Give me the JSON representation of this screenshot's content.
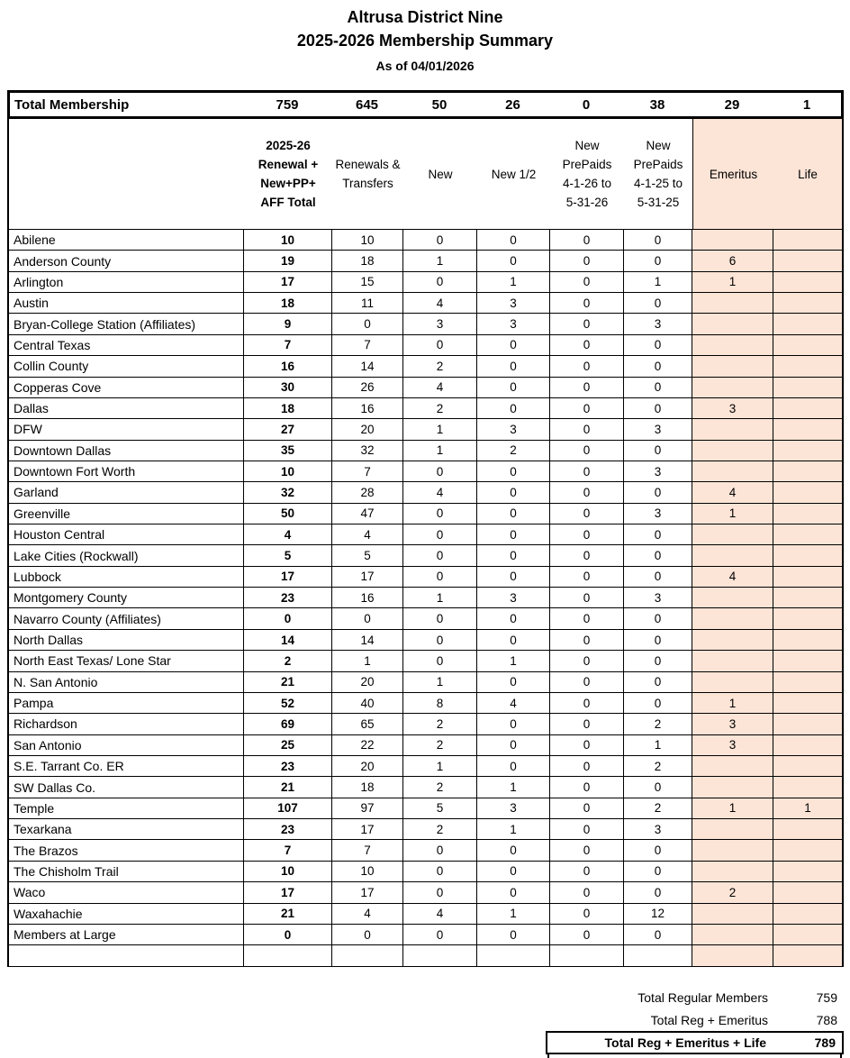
{
  "colors": {
    "highlight": "#fce4d6",
    "border": "#000000"
  },
  "title": {
    "line1": "Altrusa District Nine",
    "line2": "2025-2026 Membership Summary",
    "as_of": "As of 04/01/2026"
  },
  "table": {
    "total_row": {
      "label": "Total Membership",
      "values": [
        "759",
        "645",
        "50",
        "26",
        "0",
        "38",
        "29",
        "1"
      ]
    },
    "columns": [
      {
        "lines": [
          "2025-26",
          "Renewal +",
          "New+PP+",
          "AFF Total"
        ],
        "bold": true,
        "highlight": false
      },
      {
        "lines": [
          "Renewals &",
          "Transfers"
        ],
        "bold": false,
        "highlight": false
      },
      {
        "lines": [
          "New"
        ],
        "bold": false,
        "highlight": false
      },
      {
        "lines": [
          "New 1/2"
        ],
        "bold": false,
        "highlight": false
      },
      {
        "lines": [
          "New",
          "PrePaids",
          "4-1-26 to",
          "5-31-26"
        ],
        "bold": false,
        "highlight": false
      },
      {
        "lines": [
          "New",
          "PrePaids",
          "4-1-25 to",
          "5-31-25"
        ],
        "bold": false,
        "highlight": false
      },
      {
        "lines": [
          "Emeritus"
        ],
        "bold": false,
        "highlight": true
      },
      {
        "lines": [
          "Life"
        ],
        "bold": false,
        "highlight": true
      }
    ],
    "rows": [
      {
        "name": "Abilene",
        "values": [
          "10",
          "10",
          "0",
          "0",
          "0",
          "0",
          "",
          ""
        ]
      },
      {
        "name": "Anderson County",
        "values": [
          "19",
          "18",
          "1",
          "0",
          "0",
          "0",
          "6",
          ""
        ]
      },
      {
        "name": "Arlington",
        "values": [
          "17",
          "15",
          "0",
          "1",
          "0",
          "1",
          "1",
          ""
        ]
      },
      {
        "name": "Austin",
        "values": [
          "18",
          "11",
          "4",
          "3",
          "0",
          "0",
          "",
          ""
        ]
      },
      {
        "name": "Bryan-College Station (Affiliates)",
        "values": [
          "9",
          "0",
          "3",
          "3",
          "0",
          "3",
          "",
          ""
        ]
      },
      {
        "name": "Central Texas",
        "values": [
          "7",
          "7",
          "0",
          "0",
          "0",
          "0",
          "",
          ""
        ]
      },
      {
        "name": "Collin County",
        "values": [
          "16",
          "14",
          "2",
          "0",
          "0",
          "0",
          "",
          ""
        ]
      },
      {
        "name": "Copperas Cove",
        "values": [
          "30",
          "26",
          "4",
          "0",
          "0",
          "0",
          "",
          ""
        ]
      },
      {
        "name": "Dallas",
        "values": [
          "18",
          "16",
          "2",
          "0",
          "0",
          "0",
          "3",
          ""
        ]
      },
      {
        "name": "DFW",
        "values": [
          "27",
          "20",
          "1",
          "3",
          "0",
          "3",
          "",
          ""
        ]
      },
      {
        "name": "Downtown Dallas",
        "values": [
          "35",
          "32",
          "1",
          "2",
          "0",
          "0",
          "",
          ""
        ]
      },
      {
        "name": "Downtown Fort Worth",
        "values": [
          "10",
          "7",
          "0",
          "0",
          "0",
          "3",
          "",
          ""
        ]
      },
      {
        "name": "Garland",
        "values": [
          "32",
          "28",
          "4",
          "0",
          "0",
          "0",
          "4",
          ""
        ]
      },
      {
        "name": "Greenville",
        "values": [
          "50",
          "47",
          "0",
          "0",
          "0",
          "3",
          "1",
          ""
        ]
      },
      {
        "name": "Houston Central",
        "values": [
          "4",
          "4",
          "0",
          "0",
          "0",
          "0",
          "",
          ""
        ]
      },
      {
        "name": "Lake Cities (Rockwall)",
        "values": [
          "5",
          "5",
          "0",
          "0",
          "0",
          "0",
          "",
          ""
        ]
      },
      {
        "name": "Lubbock",
        "values": [
          "17",
          "17",
          "0",
          "0",
          "0",
          "0",
          "4",
          ""
        ]
      },
      {
        "name": "Montgomery County",
        "values": [
          "23",
          "16",
          "1",
          "3",
          "0",
          "3",
          "",
          ""
        ]
      },
      {
        "name": "Navarro County (Affiliates)",
        "values": [
          "0",
          "0",
          "0",
          "0",
          "0",
          "0",
          "",
          ""
        ]
      },
      {
        "name": "North Dallas",
        "values": [
          "14",
          "14",
          "0",
          "0",
          "0",
          "0",
          "",
          ""
        ]
      },
      {
        "name": "North East Texas/ Lone Star",
        "values": [
          "2",
          "1",
          "0",
          "1",
          "0",
          "0",
          "",
          ""
        ]
      },
      {
        "name": "N. San Antonio",
        "values": [
          "21",
          "20",
          "1",
          "0",
          "0",
          "0",
          "",
          ""
        ]
      },
      {
        "name": "Pampa",
        "values": [
          "52",
          "40",
          "8",
          "4",
          "0",
          "0",
          "1",
          ""
        ]
      },
      {
        "name": "Richardson",
        "values": [
          "69",
          "65",
          "2",
          "0",
          "0",
          "2",
          "3",
          ""
        ]
      },
      {
        "name": "San Antonio",
        "values": [
          "25",
          "22",
          "2",
          "0",
          "0",
          "1",
          "3",
          ""
        ]
      },
      {
        "name": "S.E. Tarrant Co. ER",
        "values": [
          "23",
          "20",
          "1",
          "0",
          "0",
          "2",
          "",
          ""
        ]
      },
      {
        "name": "SW Dallas Co.",
        "values": [
          "21",
          "18",
          "2",
          "1",
          "0",
          "0",
          "",
          ""
        ]
      },
      {
        "name": "Temple",
        "values": [
          "107",
          "97",
          "5",
          "3",
          "0",
          "2",
          "1",
          "1"
        ]
      },
      {
        "name": "Texarkana",
        "values": [
          "23",
          "17",
          "2",
          "1",
          "0",
          "3",
          "",
          ""
        ]
      },
      {
        "name": "The Brazos",
        "values": [
          "7",
          "7",
          "0",
          "0",
          "0",
          "0",
          "",
          ""
        ]
      },
      {
        "name": "The Chisholm Trail",
        "values": [
          "10",
          "10",
          "0",
          "0",
          "0",
          "0",
          "",
          ""
        ]
      },
      {
        "name": "Waco",
        "values": [
          "17",
          "17",
          "0",
          "0",
          "0",
          "0",
          "2",
          ""
        ]
      },
      {
        "name": "Waxahachie",
        "values": [
          "21",
          "4",
          "4",
          "1",
          "0",
          "12",
          "",
          ""
        ]
      },
      {
        "name": "Members at Large",
        "values": [
          "0",
          "0",
          "0",
          "0",
          "0",
          "0",
          "",
          ""
        ]
      },
      {
        "name": "",
        "values": [
          "",
          "",
          "",
          "",
          "",
          "",
          "",
          ""
        ]
      }
    ]
  },
  "footer": {
    "rows": [
      {
        "label": "Total Regular Members",
        "value": "759"
      },
      {
        "label": "Total Reg + Emeritus",
        "value": "788"
      },
      {
        "label": "Total Reg + Emeritus + Life",
        "value": "789"
      }
    ]
  }
}
